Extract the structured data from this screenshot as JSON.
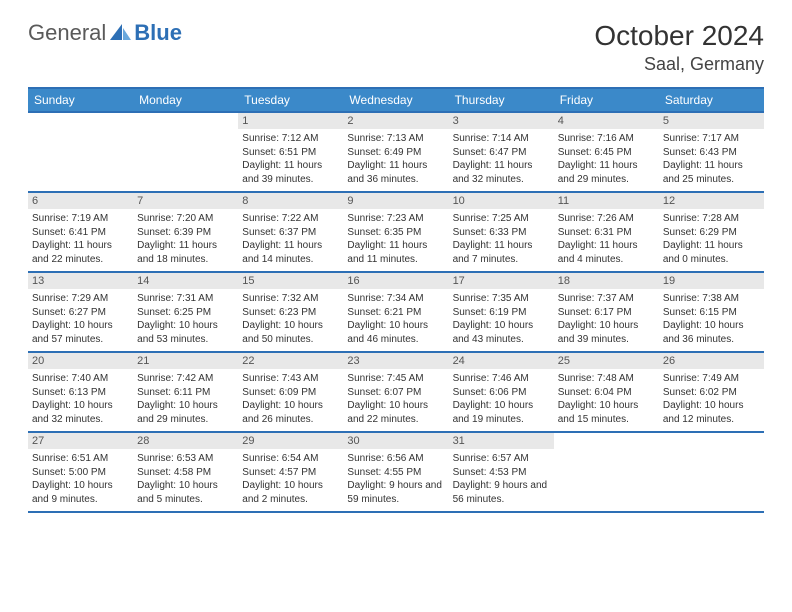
{
  "logo": {
    "part1": "General",
    "part2": "Blue"
  },
  "title": "October 2024",
  "location": "Saal, Germany",
  "day_headers": [
    "Sunday",
    "Monday",
    "Tuesday",
    "Wednesday",
    "Thursday",
    "Friday",
    "Saturday"
  ],
  "colors": {
    "header_bg": "#3b89c9",
    "header_border": "#2d6fb5",
    "daynum_bg": "#e8e8e8",
    "logo_gray": "#5a5a5a",
    "logo_blue": "#2d6fb5"
  },
  "weeks": [
    [
      null,
      null,
      {
        "n": "1",
        "sunrise": "7:12 AM",
        "sunset": "6:51 PM",
        "daylight": "11 hours and 39 minutes."
      },
      {
        "n": "2",
        "sunrise": "7:13 AM",
        "sunset": "6:49 PM",
        "daylight": "11 hours and 36 minutes."
      },
      {
        "n": "3",
        "sunrise": "7:14 AM",
        "sunset": "6:47 PM",
        "daylight": "11 hours and 32 minutes."
      },
      {
        "n": "4",
        "sunrise": "7:16 AM",
        "sunset": "6:45 PM",
        "daylight": "11 hours and 29 minutes."
      },
      {
        "n": "5",
        "sunrise": "7:17 AM",
        "sunset": "6:43 PM",
        "daylight": "11 hours and 25 minutes."
      }
    ],
    [
      {
        "n": "6",
        "sunrise": "7:19 AM",
        "sunset": "6:41 PM",
        "daylight": "11 hours and 22 minutes."
      },
      {
        "n": "7",
        "sunrise": "7:20 AM",
        "sunset": "6:39 PM",
        "daylight": "11 hours and 18 minutes."
      },
      {
        "n": "8",
        "sunrise": "7:22 AM",
        "sunset": "6:37 PM",
        "daylight": "11 hours and 14 minutes."
      },
      {
        "n": "9",
        "sunrise": "7:23 AM",
        "sunset": "6:35 PM",
        "daylight": "11 hours and 11 minutes."
      },
      {
        "n": "10",
        "sunrise": "7:25 AM",
        "sunset": "6:33 PM",
        "daylight": "11 hours and 7 minutes."
      },
      {
        "n": "11",
        "sunrise": "7:26 AM",
        "sunset": "6:31 PM",
        "daylight": "11 hours and 4 minutes."
      },
      {
        "n": "12",
        "sunrise": "7:28 AM",
        "sunset": "6:29 PM",
        "daylight": "11 hours and 0 minutes."
      }
    ],
    [
      {
        "n": "13",
        "sunrise": "7:29 AM",
        "sunset": "6:27 PM",
        "daylight": "10 hours and 57 minutes."
      },
      {
        "n": "14",
        "sunrise": "7:31 AM",
        "sunset": "6:25 PM",
        "daylight": "10 hours and 53 minutes."
      },
      {
        "n": "15",
        "sunrise": "7:32 AM",
        "sunset": "6:23 PM",
        "daylight": "10 hours and 50 minutes."
      },
      {
        "n": "16",
        "sunrise": "7:34 AM",
        "sunset": "6:21 PM",
        "daylight": "10 hours and 46 minutes."
      },
      {
        "n": "17",
        "sunrise": "7:35 AM",
        "sunset": "6:19 PM",
        "daylight": "10 hours and 43 minutes."
      },
      {
        "n": "18",
        "sunrise": "7:37 AM",
        "sunset": "6:17 PM",
        "daylight": "10 hours and 39 minutes."
      },
      {
        "n": "19",
        "sunrise": "7:38 AM",
        "sunset": "6:15 PM",
        "daylight": "10 hours and 36 minutes."
      }
    ],
    [
      {
        "n": "20",
        "sunrise": "7:40 AM",
        "sunset": "6:13 PM",
        "daylight": "10 hours and 32 minutes."
      },
      {
        "n": "21",
        "sunrise": "7:42 AM",
        "sunset": "6:11 PM",
        "daylight": "10 hours and 29 minutes."
      },
      {
        "n": "22",
        "sunrise": "7:43 AM",
        "sunset": "6:09 PM",
        "daylight": "10 hours and 26 minutes."
      },
      {
        "n": "23",
        "sunrise": "7:45 AM",
        "sunset": "6:07 PM",
        "daylight": "10 hours and 22 minutes."
      },
      {
        "n": "24",
        "sunrise": "7:46 AM",
        "sunset": "6:06 PM",
        "daylight": "10 hours and 19 minutes."
      },
      {
        "n": "25",
        "sunrise": "7:48 AM",
        "sunset": "6:04 PM",
        "daylight": "10 hours and 15 minutes."
      },
      {
        "n": "26",
        "sunrise": "7:49 AM",
        "sunset": "6:02 PM",
        "daylight": "10 hours and 12 minutes."
      }
    ],
    [
      {
        "n": "27",
        "sunrise": "6:51 AM",
        "sunset": "5:00 PM",
        "daylight": "10 hours and 9 minutes."
      },
      {
        "n": "28",
        "sunrise": "6:53 AM",
        "sunset": "4:58 PM",
        "daylight": "10 hours and 5 minutes."
      },
      {
        "n": "29",
        "sunrise": "6:54 AM",
        "sunset": "4:57 PM",
        "daylight": "10 hours and 2 minutes."
      },
      {
        "n": "30",
        "sunrise": "6:56 AM",
        "sunset": "4:55 PM",
        "daylight": "9 hours and 59 minutes."
      },
      {
        "n": "31",
        "sunrise": "6:57 AM",
        "sunset": "4:53 PM",
        "daylight": "9 hours and 56 minutes."
      },
      null,
      null
    ]
  ],
  "labels": {
    "sunrise": "Sunrise: ",
    "sunset": "Sunset: ",
    "daylight": "Daylight: "
  }
}
